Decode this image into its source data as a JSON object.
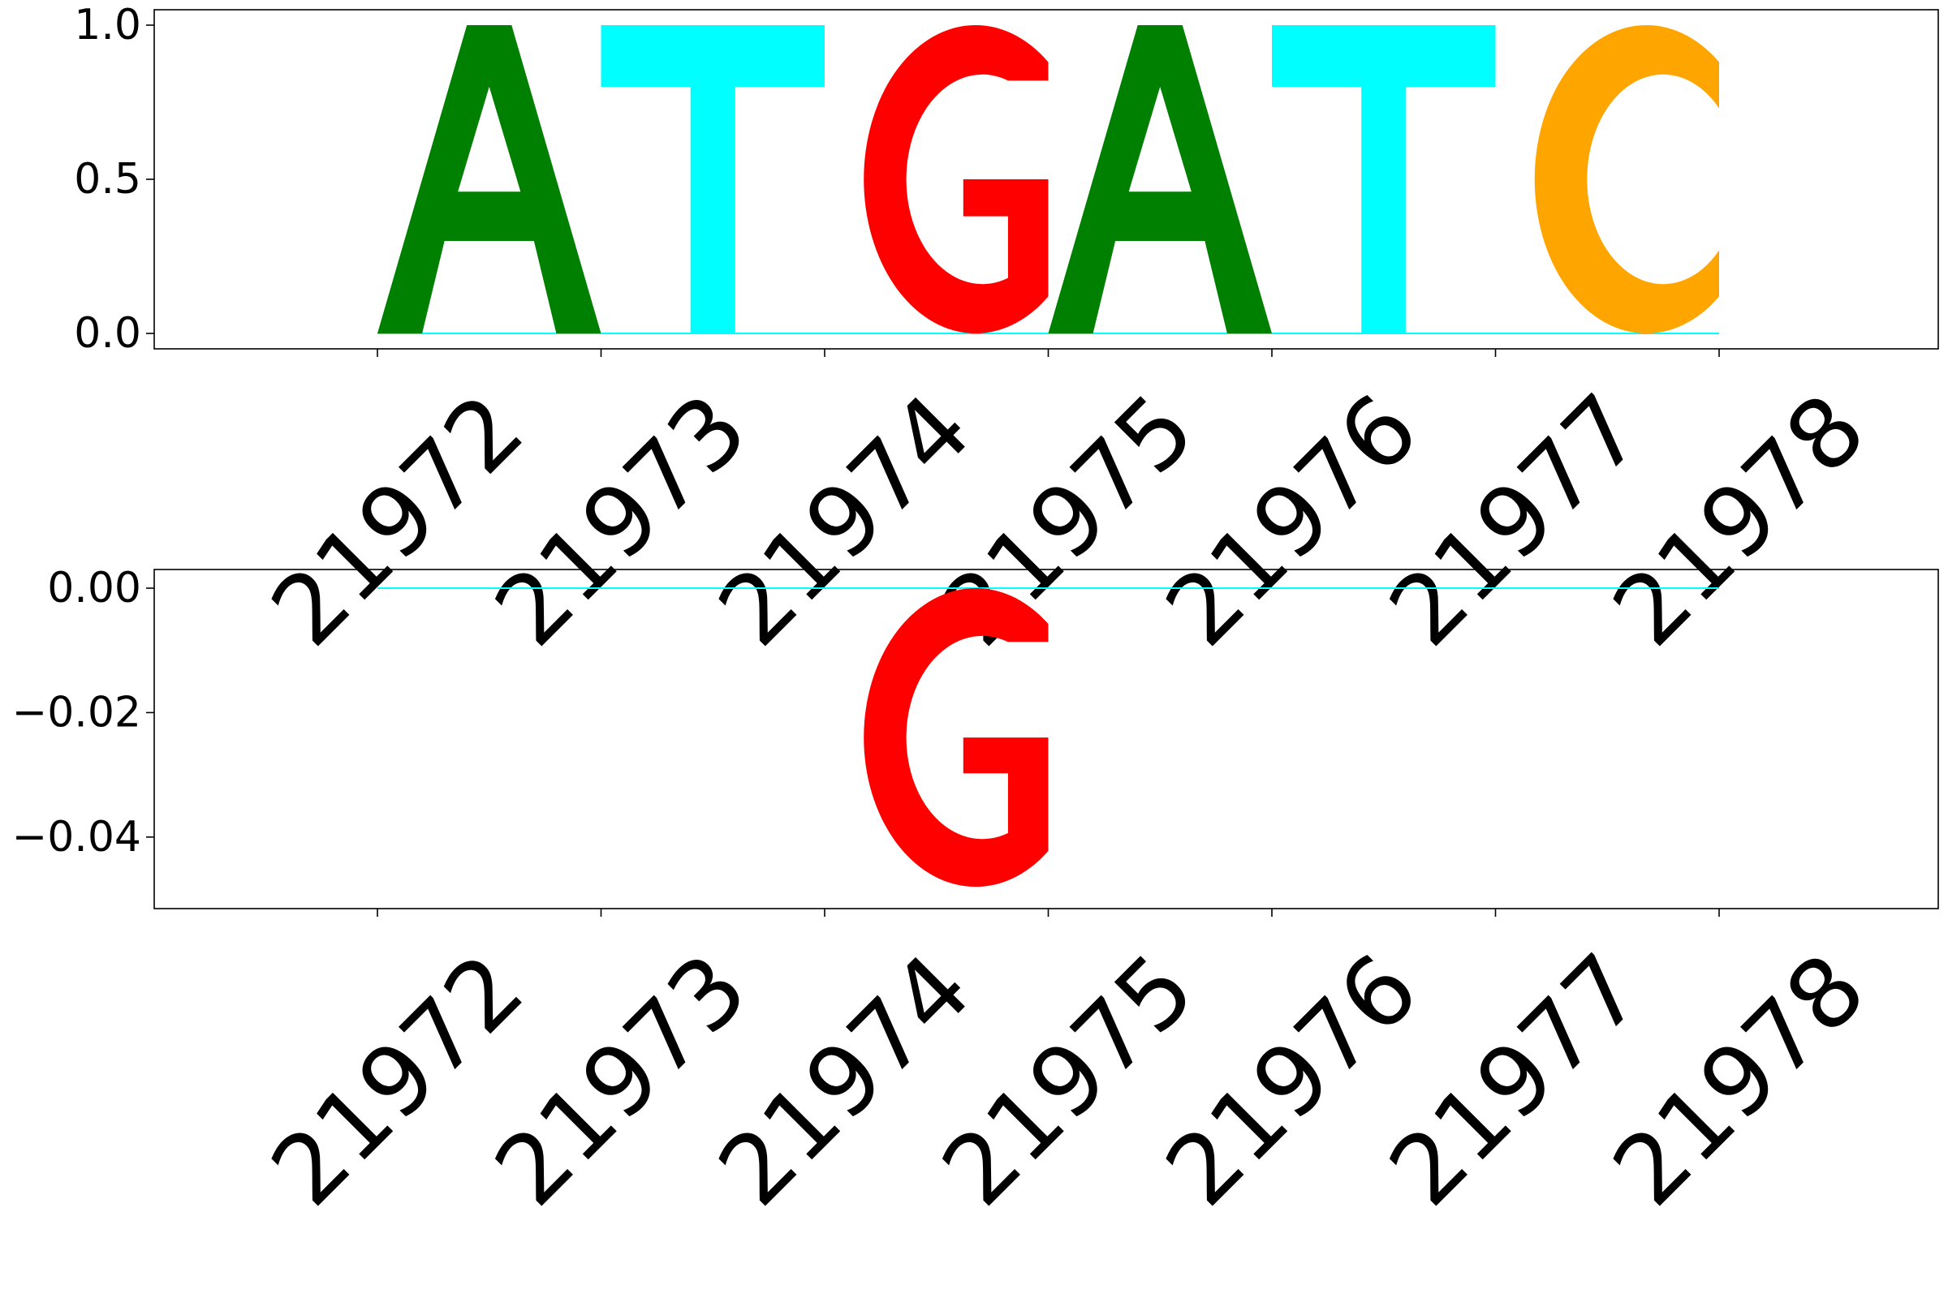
{
  "chart_data": [
    {
      "type": "sequence-logo",
      "title": "",
      "xlabel": "",
      "ylabel": "",
      "x_ticks": [
        "21972",
        "21973",
        "21974",
        "21975",
        "21976",
        "21977",
        "21978"
      ],
      "y_ticks": [
        "0.0",
        "0.5",
        "1.0"
      ],
      "ylim": [
        -0.05,
        1.05
      ],
      "letters": [
        {
          "position": 21972,
          "base": "A",
          "value": 1.0
        },
        {
          "position": 21973,
          "base": "T",
          "value": 1.0
        },
        {
          "position": 21974,
          "base": "G",
          "value": 1.0
        },
        {
          "position": 21975,
          "base": "A",
          "value": 1.0
        },
        {
          "position": 21976,
          "base": "T",
          "value": 1.0
        },
        {
          "position": 21977,
          "base": "C",
          "value": 1.0
        }
      ]
    },
    {
      "type": "sequence-logo",
      "title": "",
      "xlabel": "",
      "ylabel": "",
      "x_ticks": [
        "21972",
        "21973",
        "21974",
        "21975",
        "21976",
        "21977",
        "21978"
      ],
      "y_ticks": [
        "0.00",
        "−0.02",
        "−0.04"
      ],
      "ylim": [
        -0.0515,
        0.003
      ],
      "letters": [
        {
          "position": 21974,
          "base": "G",
          "value": -0.048
        }
      ]
    }
  ],
  "colors": {
    "A": "#008000",
    "C": "#ffa500",
    "G": "#ff0000",
    "T": "#00ffff",
    "axis": "#000000"
  }
}
